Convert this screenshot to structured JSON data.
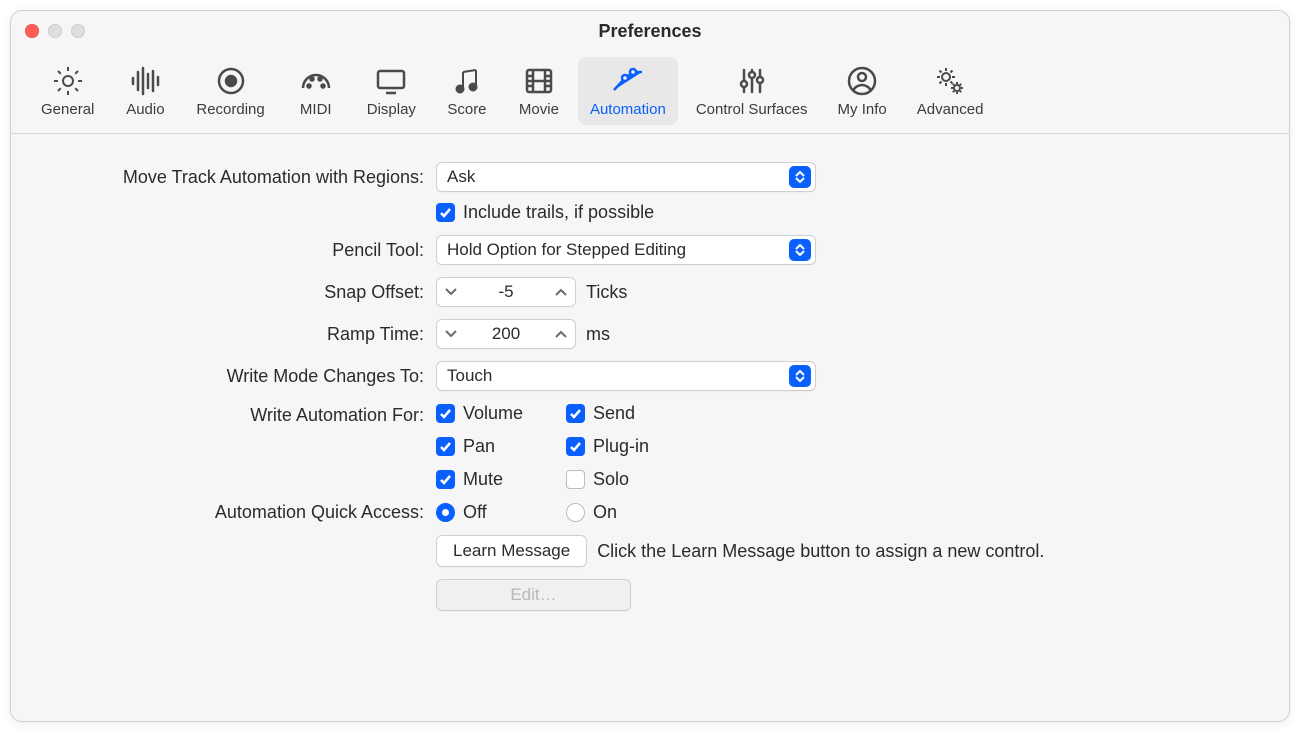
{
  "window": {
    "title": "Preferences"
  },
  "colors": {
    "accent": "#0a60ff",
    "window_bg": "#f6f6f6",
    "text": "#2b2b2b",
    "border": "#cfcfcf"
  },
  "toolbar": {
    "tabs": [
      {
        "label": "General",
        "icon": "gear",
        "active": false
      },
      {
        "label": "Audio",
        "icon": "waveform",
        "active": false
      },
      {
        "label": "Recording",
        "icon": "record-circle",
        "active": false
      },
      {
        "label": "MIDI",
        "icon": "midi-gauge",
        "active": false
      },
      {
        "label": "Display",
        "icon": "display",
        "active": false
      },
      {
        "label": "Score",
        "icon": "music-notes",
        "active": false
      },
      {
        "label": "Movie",
        "icon": "film",
        "active": false
      },
      {
        "label": "Automation",
        "icon": "automation-nodes",
        "active": true
      },
      {
        "label": "Control Surfaces",
        "icon": "sliders",
        "active": false
      },
      {
        "label": "My Info",
        "icon": "person-circle",
        "active": false
      },
      {
        "label": "Advanced",
        "icon": "double-gear",
        "active": false
      }
    ]
  },
  "form": {
    "move_track": {
      "label": "Move Track Automation with Regions:",
      "value": "Ask"
    },
    "include_trails": {
      "label": "Include trails, if possible",
      "checked": true
    },
    "pencil_tool": {
      "label": "Pencil Tool:",
      "value": "Hold Option for Stepped Editing"
    },
    "snap_offset": {
      "label": "Snap Offset:",
      "value": "-5",
      "unit": "Ticks"
    },
    "ramp_time": {
      "label": "Ramp Time:",
      "value": "200",
      "unit": "ms"
    },
    "write_mode": {
      "label": "Write Mode Changes To:",
      "value": "Touch"
    },
    "write_auto": {
      "label": "Write Automation For:",
      "options": [
        {
          "label": "Volume",
          "checked": true
        },
        {
          "label": "Send",
          "checked": true
        },
        {
          "label": "Pan",
          "checked": true
        },
        {
          "label": "Plug-in",
          "checked": true
        },
        {
          "label": "Mute",
          "checked": true
        },
        {
          "label": "Solo",
          "checked": false
        }
      ]
    },
    "quick_access": {
      "label": "Automation Quick Access:",
      "options": [
        {
          "label": "Off",
          "selected": true
        },
        {
          "label": "On",
          "selected": false
        }
      ]
    },
    "learn_btn": "Learn Message",
    "learn_hint": "Click the Learn Message button to assign a new control.",
    "edit_btn": "Edit…"
  }
}
